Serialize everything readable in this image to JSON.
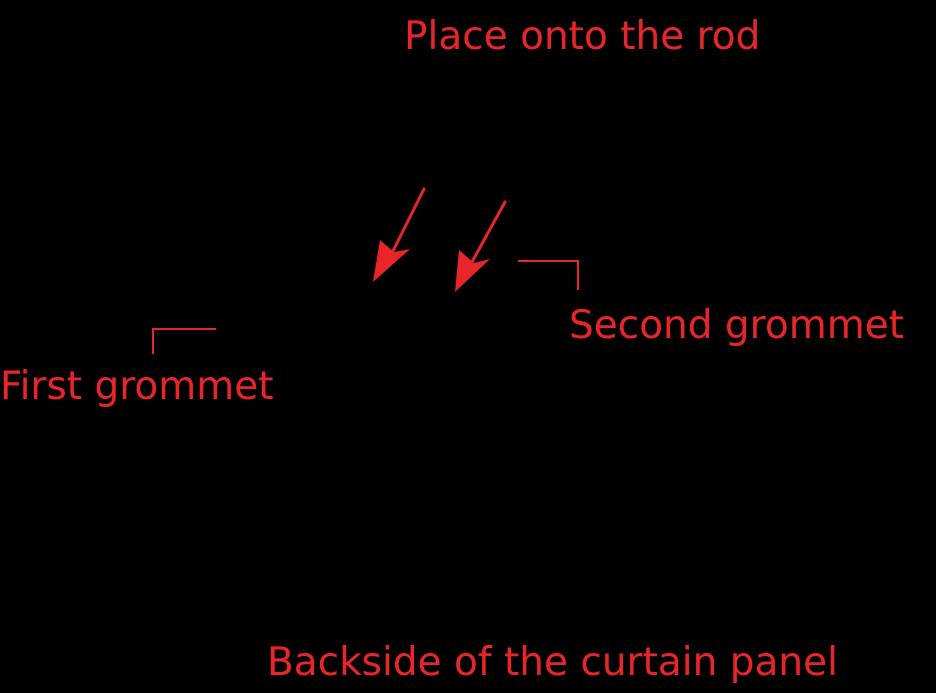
{
  "colors": {
    "background": "#000000",
    "annotation": "#e8262a"
  },
  "labels": {
    "top": "Place onto the rod",
    "second_grommet": "Second grommet",
    "first_grommet": "First grommet",
    "bottom": "Backside of the curtain panel"
  }
}
